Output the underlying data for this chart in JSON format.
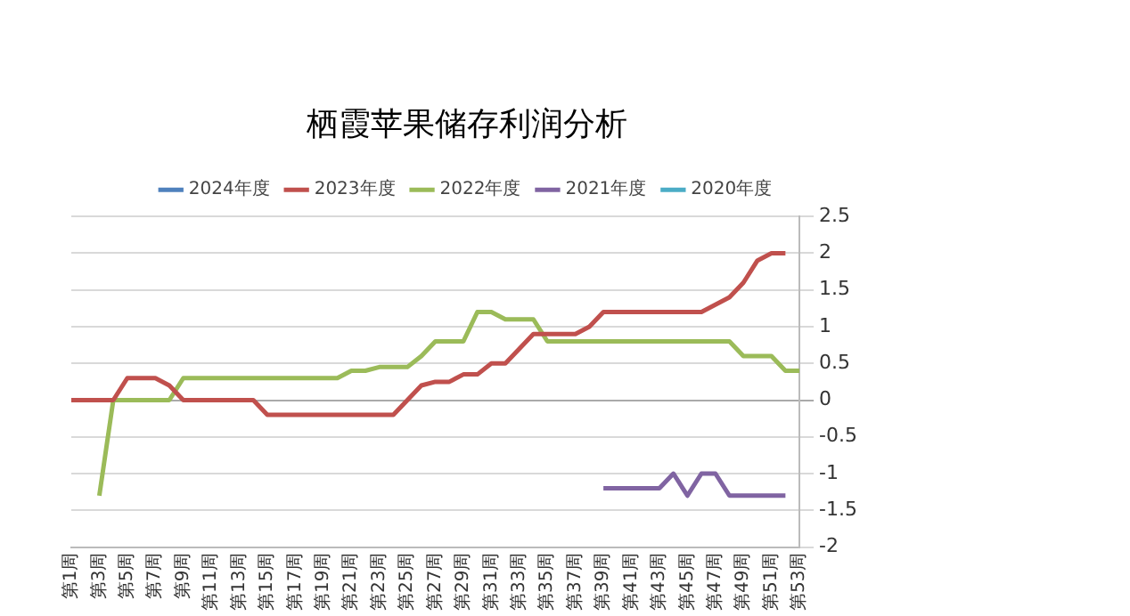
{
  "chart_data": {
    "type": "line",
    "title": "栖霞苹果储存利润分析",
    "categories": [
      "第1周",
      null,
      "第3周",
      null,
      "第5周",
      null,
      "第7周",
      null,
      "第9周",
      null,
      "第11周",
      null,
      "第13周",
      null,
      "第15周",
      null,
      "第17周",
      null,
      "第19周",
      null,
      "第21周",
      null,
      "第23周",
      null,
      "第25周",
      null,
      "第27周",
      null,
      "第29周",
      null,
      "第31周",
      null,
      "第33周",
      null,
      "第35周",
      null,
      "第37周",
      null,
      "第39周",
      null,
      "第41周",
      null,
      "第43周",
      null,
      "第45周",
      null,
      "第47周",
      null,
      "第49周",
      null,
      "第51周",
      null,
      "第53周"
    ],
    "series": [
      {
        "name": "2024年度",
        "color": "#4f81bd",
        "values": [
          null,
          null,
          null,
          null,
          null,
          null,
          null,
          null,
          null,
          null,
          null,
          null,
          null,
          null,
          null,
          null,
          null,
          null,
          null,
          null,
          null,
          null,
          null,
          null,
          null,
          null,
          null,
          null,
          null,
          null,
          null,
          null,
          null,
          null,
          null,
          null,
          null,
          null,
          null,
          null,
          null,
          null,
          null,
          null,
          null,
          null,
          null,
          null,
          null,
          null,
          null,
          null,
          null
        ]
      },
      {
        "name": "2023年度",
        "color": "#c0504d",
        "values": [
          0,
          0,
          0,
          0,
          0.3,
          0.3,
          0.3,
          0.2,
          0,
          0,
          0,
          0,
          0,
          0,
          -0.2,
          -0.2,
          -0.2,
          -0.2,
          -0.2,
          -0.2,
          -0.2,
          -0.2,
          -0.2,
          -0.2,
          0,
          0.2,
          0.25,
          0.25,
          0.35,
          0.35,
          0.5,
          0.5,
          0.7,
          0.9,
          0.9,
          0.9,
          0.9,
          1.0,
          1.2,
          1.2,
          1.2,
          1.2,
          1.2,
          1.2,
          1.2,
          1.2,
          1.3,
          1.4,
          1.6,
          1.9,
          2.0,
          2.0,
          null
        ]
      },
      {
        "name": "2022年度",
        "color": "#9bbb59",
        "values": [
          null,
          null,
          -1.3,
          0,
          0,
          0,
          0,
          0,
          0.3,
          0.3,
          0.3,
          0.3,
          0.3,
          0.3,
          0.3,
          0.3,
          0.3,
          0.3,
          0.3,
          0.3,
          0.4,
          0.4,
          0.45,
          0.45,
          0.45,
          0.6,
          0.8,
          0.8,
          0.8,
          1.2,
          1.2,
          1.1,
          1.1,
          1.1,
          0.8,
          0.8,
          0.8,
          0.8,
          0.8,
          0.8,
          0.8,
          0.8,
          0.8,
          0.8,
          0.8,
          0.8,
          0.8,
          0.8,
          0.6,
          0.6,
          0.6,
          0.4,
          0.4
        ]
      },
      {
        "name": "2021年度",
        "color": "#8064a2",
        "values": [
          null,
          null,
          null,
          null,
          null,
          null,
          null,
          null,
          null,
          null,
          null,
          null,
          null,
          null,
          null,
          null,
          null,
          null,
          null,
          null,
          null,
          null,
          null,
          null,
          null,
          null,
          null,
          null,
          null,
          null,
          null,
          null,
          null,
          null,
          null,
          null,
          null,
          null,
          -1.2,
          -1.2,
          -1.2,
          -1.2,
          -1.2,
          -1.0,
          -1.3,
          -1.0,
          -1.0,
          -1.3,
          -1.3,
          -1.3,
          -1.3,
          -1.3,
          null
        ]
      },
      {
        "name": "2020年度",
        "color": "#4bacc6",
        "values": [
          null,
          null,
          null,
          null,
          null,
          null,
          null,
          null,
          null,
          null,
          null,
          null,
          null,
          null,
          null,
          null,
          null,
          null,
          null,
          null,
          null,
          null,
          null,
          null,
          null,
          null,
          null,
          null,
          null,
          null,
          null,
          null,
          null,
          null,
          null,
          null,
          null,
          null,
          null,
          null,
          null,
          null,
          null,
          null,
          null,
          null,
          null,
          null,
          null,
          null,
          null,
          null,
          null
        ]
      }
    ],
    "ylim": [
      -2,
      2.5
    ],
    "yticks": [
      -2,
      -1.5,
      -1,
      -0.5,
      0,
      0.5,
      1,
      1.5,
      2,
      2.5
    ],
    "grid": "y",
    "legend": "top",
    "marker": "none",
    "line_style": "solid"
  }
}
